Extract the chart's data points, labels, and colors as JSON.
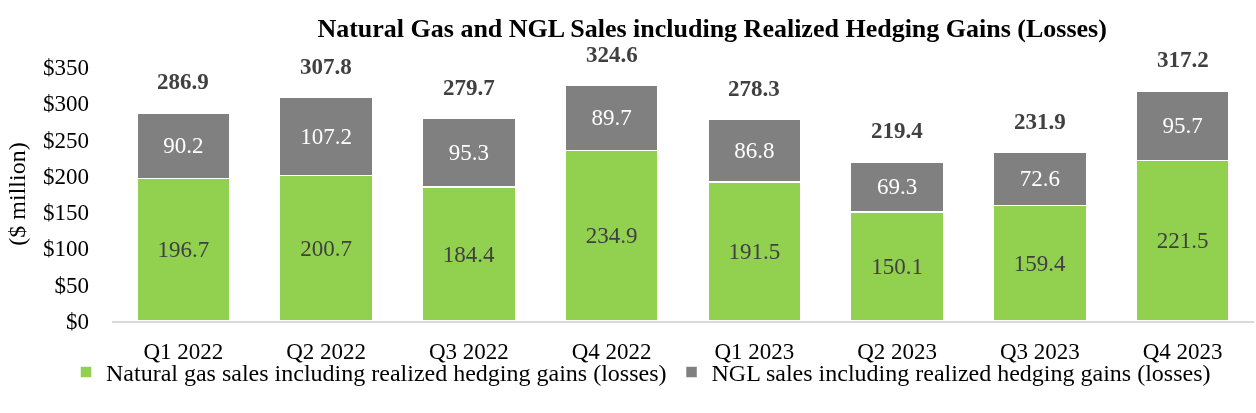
{
  "chart_data": {
    "type": "bar",
    "title": "Natural Gas and NGL Sales including Realized Hedging Gains (Losses)",
    "ylabel": "($ million)",
    "categories": [
      "Q1 2022",
      "Q2 2022",
      "Q3 2022",
      "Q4 2022",
      "Q1 2023",
      "Q2 2023",
      "Q3 2023",
      "Q4 2023"
    ],
    "series": [
      {
        "name": "Natural gas sales including realized hedging gains (losses)",
        "color": "#92d050",
        "values": [
          196.7,
          200.7,
          184.4,
          234.9,
          191.5,
          150.1,
          159.4,
          221.5
        ]
      },
      {
        "name": "NGL sales including realized hedging gains (losses)",
        "color": "#808080",
        "values": [
          90.2,
          107.2,
          95.3,
          89.7,
          86.8,
          69.3,
          72.6,
          95.7
        ]
      }
    ],
    "stacked": true,
    "data_labels": true,
    "totals": [
      "286.9",
      "307.8",
      "279.7",
      "324.6",
      "278.3",
      "219.4",
      "231.9",
      "317.2"
    ],
    "ylim": [
      0,
      350
    ],
    "yticks": [
      {
        "value": 0,
        "label": "$0"
      },
      {
        "value": 50,
        "label": "$50"
      },
      {
        "value": 100,
        "label": "$100"
      },
      {
        "value": 150,
        "label": "$150"
      },
      {
        "value": 200,
        "label": "$200"
      },
      {
        "value": 250,
        "label": "$250"
      },
      {
        "value": 300,
        "label": "$300"
      },
      {
        "value": 350,
        "label": "$350"
      }
    ],
    "legend": "bottom"
  }
}
